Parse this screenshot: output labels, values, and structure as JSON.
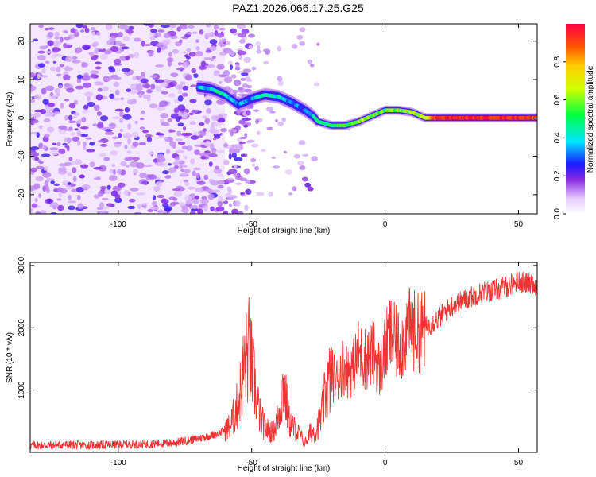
{
  "title": "PAZ1.2026.066.17.25.G25",
  "chart_data": [
    {
      "type": "heatmap",
      "panel": "top",
      "xlabel": "Height of straight line (km)",
      "ylabel": "Frequency (Hz)",
      "xlim": [
        -133,
        57
      ],
      "ylim": [
        -25,
        24.5
      ],
      "xticks": [
        -100,
        -50,
        0,
        50
      ],
      "yticks": [
        -20,
        -10,
        0,
        10,
        20
      ],
      "noise_region_x": [
        -133,
        -60
      ],
      "ridge": {
        "x": [
          -70,
          -65,
          -60,
          -55,
          -50,
          -45,
          -40,
          -35,
          -30,
          -27,
          -25,
          -20,
          -15,
          -10,
          -5,
          0,
          5,
          10,
          15,
          20,
          30,
          40,
          50,
          57
        ],
        "freq": [
          8,
          7.5,
          6,
          3.5,
          5,
          6,
          5.5,
          4,
          2,
          0.5,
          -1,
          -2,
          -2,
          -1,
          0.5,
          2,
          2,
          1.5,
          0,
          0,
          0,
          0,
          0,
          0
        ],
        "amplitude": [
          0.35,
          0.4,
          0.45,
          0.3,
          0.35,
          0.45,
          0.4,
          0.3,
          0.3,
          0.35,
          0.45,
          0.5,
          0.55,
          0.6,
          0.6,
          0.55,
          0.6,
          0.6,
          0.7,
          0.95,
          0.95,
          0.95,
          0.95,
          0.9
        ]
      },
      "colorbar": {
        "label": "Normalized spectral amplitude",
        "ticks": [
          "0.0",
          "0.2",
          "0.4",
          "0.6",
          "0.8"
        ],
        "range": [
          0,
          1
        ]
      }
    },
    {
      "type": "line",
      "panel": "bottom",
      "xlabel": "Height of straight line (km)",
      "ylabel": "SNR (10 * v/v)",
      "xlim": [
        -133,
        57
      ],
      "ylim": [
        0,
        3050
      ],
      "xticks": [
        -100,
        -50,
        0,
        50
      ],
      "yticks": [
        1000,
        2000,
        3000
      ],
      "series": [
        {
          "name": "SNR",
          "color": "#ee3333",
          "x": [
            -133,
            -120,
            -110,
            -100,
            -90,
            -80,
            -70,
            -62,
            -58,
            -55,
            -53,
            -51,
            -49,
            -47,
            -45,
            -42,
            -40,
            -38,
            -36,
            -34,
            -32,
            -30,
            -28,
            -26,
            -24,
            -22,
            -20,
            -18,
            -16,
            -14,
            -12,
            -10,
            -8,
            -6,
            -4,
            -2,
            0,
            2,
            4,
            6,
            8,
            10,
            12,
            15,
            20,
            25,
            30,
            35,
            40,
            45,
            50,
            55,
            57
          ],
          "y": [
            110,
            120,
            115,
            125,
            130,
            150,
            220,
            310,
            420,
            800,
            1350,
            1650,
            1100,
            600,
            380,
            320,
            560,
            1100,
            500,
            380,
            280,
            150,
            320,
            350,
            560,
            1000,
            1250,
            1150,
            1400,
            1300,
            1350,
            1600,
            1500,
            1550,
            1600,
            1300,
            1650,
            1900,
            1750,
            1700,
            1950,
            2000,
            1900,
            2000,
            2150,
            2350,
            2450,
            2550,
            2600,
            2650,
            2750,
            2700,
            2680
          ]
        }
      ]
    }
  ]
}
